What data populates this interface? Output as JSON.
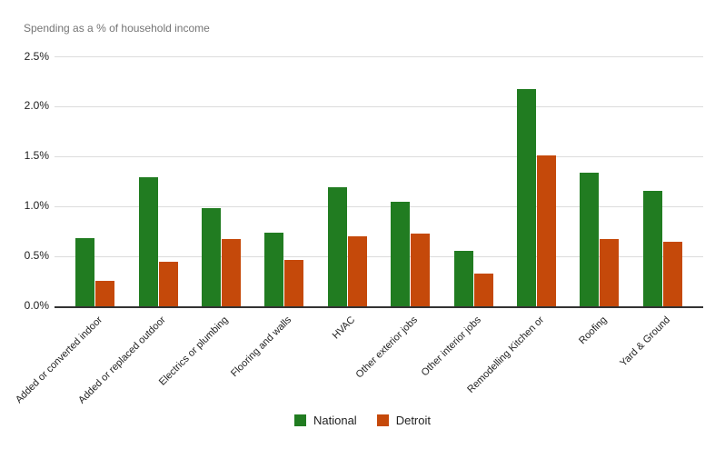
{
  "chart_data": {
    "type": "bar",
    "title": "Spending as a % of household income",
    "categories": [
      "Added or converted indoor",
      "Added or replaced outdoor",
      "Electrics or plumbing",
      "Flooring and walls",
      "HVAC",
      "Other exterior jobs",
      "Other interior jobs",
      "Remodelling Kitchen or",
      "Roofing",
      "Yard & Ground"
    ],
    "series": [
      {
        "name": "National",
        "color": "#217c21",
        "values": [
          0.68,
          1.29,
          0.98,
          0.73,
          1.19,
          1.04,
          0.55,
          2.17,
          1.33,
          1.15
        ]
      },
      {
        "name": "Detroit",
        "color": "#c5490a",
        "values": [
          0.25,
          0.44,
          0.67,
          0.46,
          0.7,
          0.72,
          0.32,
          1.51,
          0.67,
          0.64
        ]
      }
    ],
    "y_axis": {
      "min": 0,
      "max": 2.5,
      "unit": "%",
      "ticks": [
        {
          "value": 0.0,
          "label": "0.0%"
        },
        {
          "value": 0.5,
          "label": "0.5%"
        },
        {
          "value": 1.0,
          "label": "1.0%"
        },
        {
          "value": 1.5,
          "label": "1.5%"
        },
        {
          "value": 2.0,
          "label": "2.0%"
        },
        {
          "value": 2.5,
          "label": "2.5%"
        }
      ]
    },
    "grid": true,
    "legend_position": "bottom",
    "colors": {
      "grid_line": "#dcdcdc",
      "axis_line": "#333333",
      "title_text": "#757575",
      "label_text": "#222222",
      "background": "#ffffff"
    }
  }
}
